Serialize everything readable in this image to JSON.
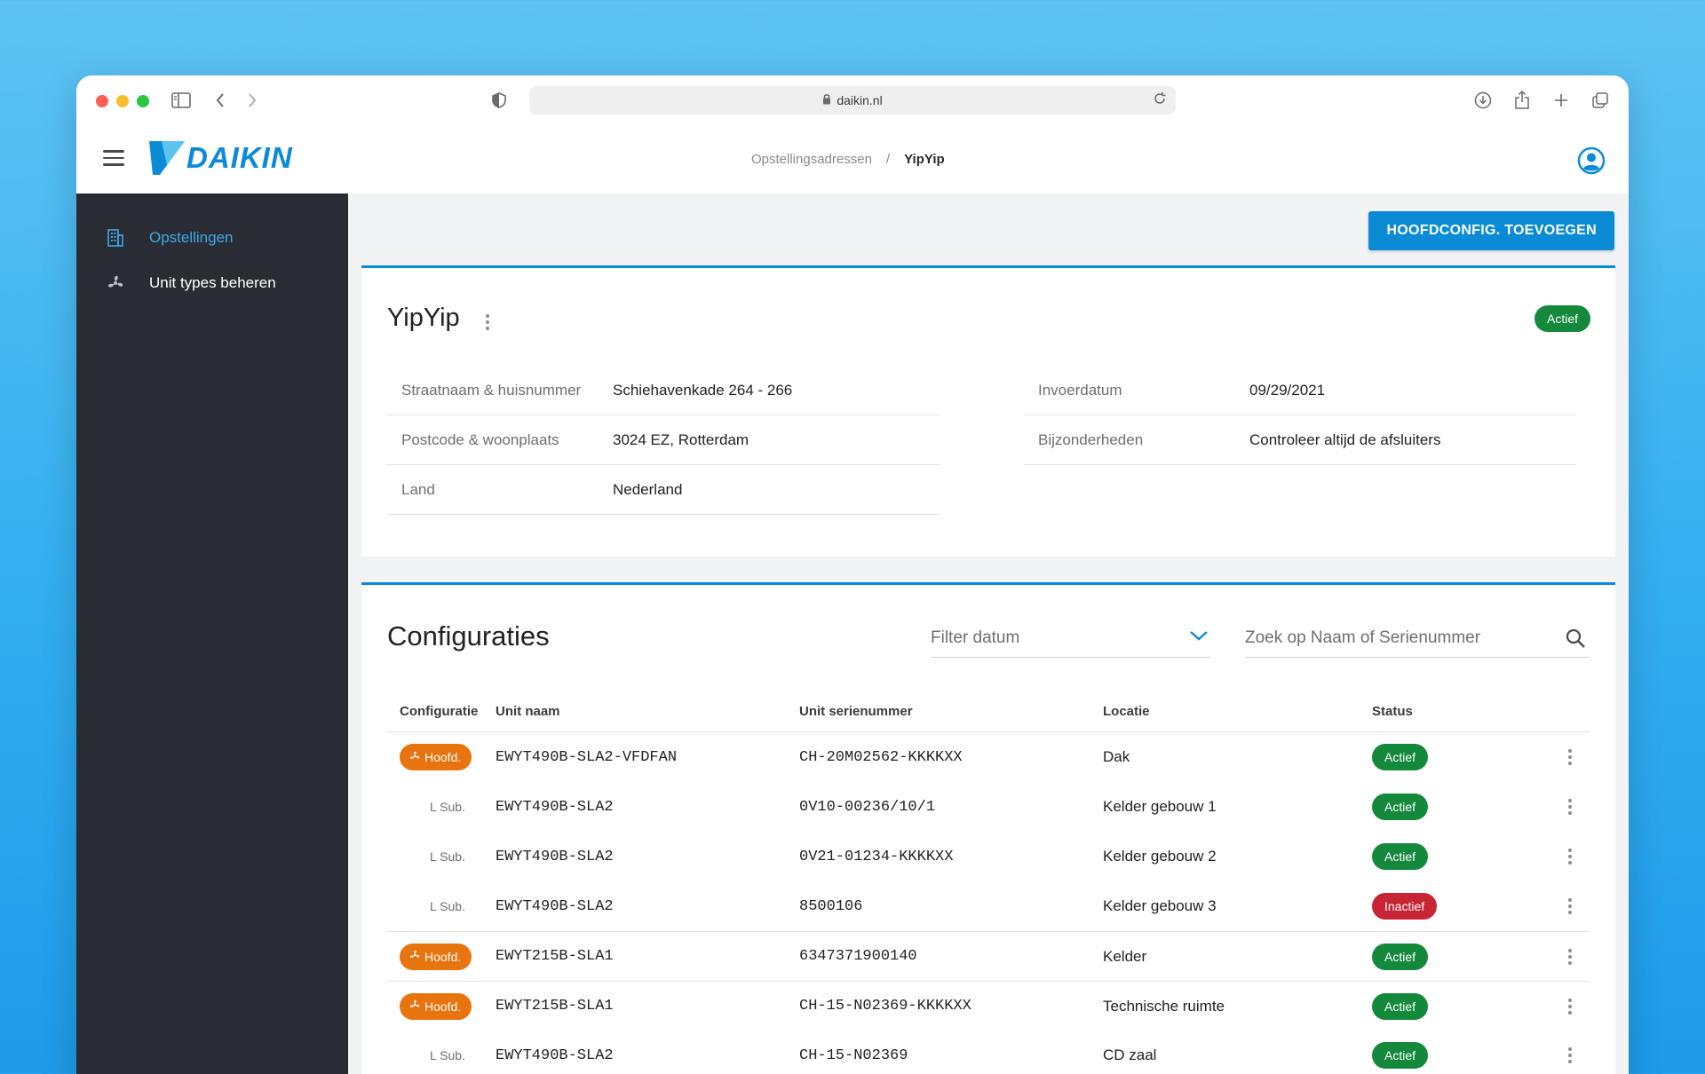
{
  "browser": {
    "url": "daikin.nl"
  },
  "header": {
    "brand": "DAIKIN",
    "breadcrumb": {
      "parent": "Opstellingsadressen",
      "separator": "/",
      "current": "YipYip"
    }
  },
  "sidebar": {
    "items": [
      {
        "label": "Opstellingen",
        "icon": "building-icon",
        "active": true
      },
      {
        "label": "Unit types beheren",
        "icon": "fan-icon",
        "active": false
      }
    ]
  },
  "toolbar": {
    "add_button": "HOOFDCONFIG. TOEVOEGEN"
  },
  "detail": {
    "title": "YipYip",
    "status": "Actief",
    "left": [
      {
        "label": "Straatnaam & huisnummer",
        "value": "Schiehavenkade 264 - 266"
      },
      {
        "label": "Postcode & woonplaats",
        "value": "3024 EZ, Rotterdam"
      },
      {
        "label": "Land",
        "value": "Nederland"
      }
    ],
    "right": [
      {
        "label": "Invoerdatum",
        "value": "09/29/2021"
      },
      {
        "label": "Bijzonderheden",
        "value": "Controleer altijd de afsluiters"
      }
    ]
  },
  "configurations": {
    "title": "Configuraties",
    "filter_placeholder": "Filter datum",
    "search_placeholder": "Zoek op Naam of Serienummer",
    "columns": [
      "Configuratie",
      "Unit naam",
      "Unit serienummer",
      "Locatie",
      "Status"
    ],
    "rows": [
      {
        "type": "Hoofd.",
        "kind": "main",
        "unit_name": "EWYT490B-SLA2-VFDFAN",
        "serial": "CH-20M02562-KKKKXX",
        "location": "Dak",
        "status": "Actief"
      },
      {
        "type": "L Sub.",
        "kind": "sub",
        "unit_name": "EWYT490B-SLA2",
        "serial": "0V10-00236/10/1",
        "location": "Kelder gebouw 1",
        "status": "Actief"
      },
      {
        "type": "L Sub.",
        "kind": "sub",
        "unit_name": "EWYT490B-SLA2",
        "serial": "0V21-01234-KKKKXX",
        "location": "Kelder gebouw 2",
        "status": "Actief"
      },
      {
        "type": "L Sub.",
        "kind": "sub",
        "unit_name": "EWYT490B-SLA2",
        "serial": "8500106",
        "location": "Kelder gebouw 3",
        "status": "Inactief"
      },
      {
        "type": "Hoofd.",
        "kind": "main",
        "unit_name": "EWYT215B-SLA1",
        "serial": "6347371900140",
        "location": "Kelder",
        "status": "Actief"
      },
      {
        "type": "Hoofd.",
        "kind": "main",
        "unit_name": "EWYT215B-SLA1",
        "serial": "CH-15-N02369-KKKKXX",
        "location": "Technische ruimte",
        "status": "Actief"
      },
      {
        "type": "L Sub.",
        "kind": "sub",
        "unit_name": "EWYT490B-SLA2",
        "serial": "CH-15-N02369",
        "location": "CD zaal",
        "status": "Actief"
      }
    ]
  },
  "colors": {
    "accent": "#0b8bd6",
    "sidebar_bg": "#292d33",
    "active_green": "#14893c",
    "inactive_red": "#c72534",
    "hoofd_orange": "#e8740f"
  }
}
